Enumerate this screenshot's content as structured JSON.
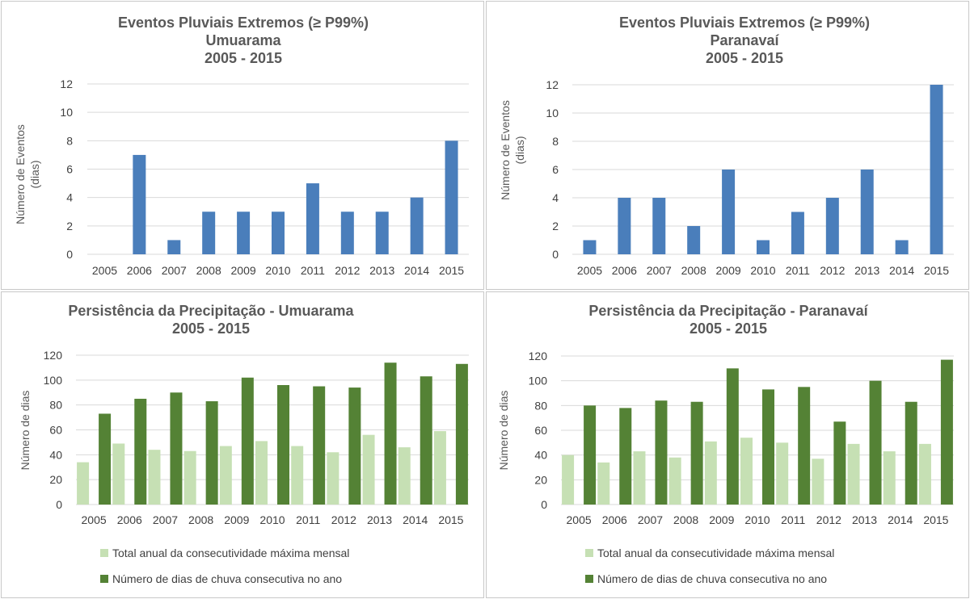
{
  "colors": {
    "bar_blue": "#4a7ebb",
    "bar_light_green": "#c6e0b4",
    "bar_dark_green": "#548235",
    "grid": "#d9d9d9",
    "text": "#404040"
  },
  "chart_data": [
    {
      "type": "bar",
      "title_lines": [
        "Eventos Pluviais Extremos (≥ P99%)",
        "Umuarama",
        "2005 - 2015"
      ],
      "ylabel_lines": [
        "Número de Eventos",
        "(dias)"
      ],
      "categories": [
        "2005",
        "2006",
        "2007",
        "2008",
        "2009",
        "2010",
        "2011",
        "2012",
        "2013",
        "2014",
        "2015"
      ],
      "series": [
        {
          "values": [
            0,
            7,
            1,
            3,
            3,
            3,
            5,
            3,
            3,
            4,
            8
          ]
        }
      ],
      "ylim": [
        0,
        12
      ],
      "yticks": [
        "0",
        "2",
        "4",
        "6",
        "8",
        "10",
        "12"
      ],
      "grid": true
    },
    {
      "type": "bar",
      "title_lines": [
        "Eventos Pluviais Extremos (≥ P99%)",
        "Paranavaí",
        "2005 - 2015"
      ],
      "ylabel_lines": [
        "Número de Eventos",
        "(dias)"
      ],
      "categories": [
        "2005",
        "2006",
        "2007",
        "2008",
        "2009",
        "2010",
        "2011",
        "2012",
        "2013",
        "2014",
        "2015"
      ],
      "series": [
        {
          "values": [
            1,
            4,
            4,
            2,
            6,
            1,
            3,
            4,
            6,
            1,
            12
          ]
        }
      ],
      "ylim": [
        0,
        12
      ],
      "yticks": [
        "0",
        "2",
        "4",
        "6",
        "8",
        "10",
        "12"
      ],
      "grid": true
    },
    {
      "type": "bar",
      "title_lines": [
        "Persistência da Precipitação - Umuarama",
        "2005 - 2015"
      ],
      "ylabel_lines": [
        "Número de dias"
      ],
      "categories": [
        "2005",
        "2006",
        "2007",
        "2008",
        "2009",
        "2010",
        "2011",
        "2012",
        "2013",
        "2014",
        "2015"
      ],
      "series": [
        {
          "name": "Total anual da consecutividade máxima mensal",
          "values": [
            34,
            49,
            44,
            43,
            47,
            51,
            47,
            42,
            56,
            46,
            59
          ]
        },
        {
          "name": "Número de dias de chuva consecutiva no ano",
          "values": [
            73,
            85,
            90,
            83,
            102,
            96,
            95,
            94,
            114,
            103,
            113
          ]
        }
      ],
      "ylim": [
        0,
        120
      ],
      "yticks": [
        "0",
        "20",
        "40",
        "60",
        "80",
        "100",
        "120"
      ],
      "grid": true,
      "legend": "bottom"
    },
    {
      "type": "bar",
      "title_lines": [
        "Persistência da Precipitação - Paranavaí",
        "2005 - 2015"
      ],
      "ylabel_lines": [
        "Número de dias"
      ],
      "categories": [
        "2005",
        "2006",
        "2007",
        "2008",
        "2009",
        "2010",
        "2011",
        "2012",
        "2013",
        "2014",
        "2015"
      ],
      "series": [
        {
          "name": "Total anual da consecutividade máxima mensal",
          "values": [
            40,
            34,
            43,
            38,
            51,
            54,
            50,
            37,
            49,
            43,
            49
          ]
        },
        {
          "name": "Número de dias de chuva consecutiva no ano",
          "values": [
            80,
            78,
            84,
            83,
            110,
            93,
            95,
            67,
            100,
            83,
            117
          ]
        }
      ],
      "ylim": [
        0,
        120
      ],
      "yticks": [
        "0",
        "20",
        "40",
        "60",
        "80",
        "100",
        "120"
      ],
      "grid": true,
      "legend": "bottom"
    }
  ]
}
